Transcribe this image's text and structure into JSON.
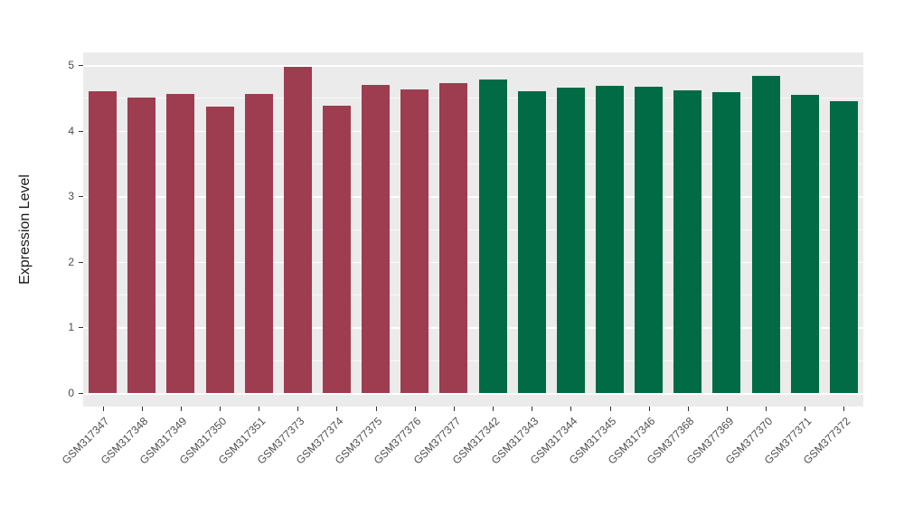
{
  "chart_data": {
    "type": "bar",
    "title": "",
    "xlabel": "",
    "ylabel": "Expression Level",
    "ylim": [
      0,
      5.2
    ],
    "y_ticks": [
      0,
      1,
      2,
      3,
      4,
      5
    ],
    "grid": true,
    "legend": "none",
    "panel_bg": "#EBEBEB",
    "grid_color": "#FFFFFF",
    "axis_text_color": "#4D4D4D",
    "categories": [
      "GSM317347",
      "GSM317348",
      "GSM317349",
      "GSM317350",
      "GSM317351",
      "GSM377373",
      "GSM377374",
      "GSM377375",
      "GSM377376",
      "GSM377377",
      "GSM317342",
      "GSM317343",
      "GSM317344",
      "GSM317345",
      "GSM317346",
      "GSM377368",
      "GSM377369",
      "GSM377370",
      "GSM377371",
      "GSM377372"
    ],
    "values": [
      4.6,
      4.51,
      4.56,
      4.37,
      4.56,
      4.97,
      4.38,
      4.7,
      4.63,
      4.73,
      4.78,
      4.6,
      4.66,
      4.69,
      4.67,
      4.61,
      4.58,
      4.84,
      4.54,
      4.45
    ],
    "bar_groups": [
      "A",
      "A",
      "A",
      "A",
      "A",
      "A",
      "A",
      "A",
      "A",
      "A",
      "B",
      "B",
      "B",
      "B",
      "B",
      "B",
      "B",
      "B",
      "B",
      "B"
    ],
    "group_colors": {
      "A": "#9E3D4F",
      "B": "#006B45"
    }
  }
}
